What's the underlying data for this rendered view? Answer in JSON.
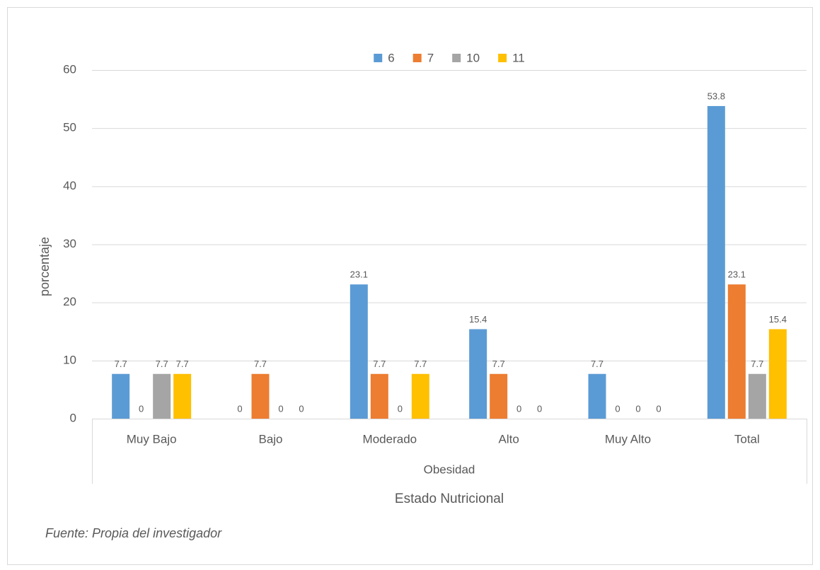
{
  "chart_data": {
    "type": "bar",
    "categories": [
      "Muy Bajo",
      "Bajo",
      "Moderado",
      "Alto",
      "Muy Alto",
      "Total"
    ],
    "category_group": "Obesidad",
    "x_label": "Estado Nutricional",
    "y_label": "porcentaje",
    "source": "Fuente: Propia del investigador",
    "series": [
      {
        "name": "6",
        "color": "#5b9bd5",
        "values": [
          7.7,
          0,
          23.1,
          15.4,
          7.7,
          53.8
        ]
      },
      {
        "name": "7",
        "color": "#ed7d31",
        "values": [
          0,
          7.7,
          7.7,
          7.7,
          0,
          23.1
        ]
      },
      {
        "name": "10",
        "color": "#a5a5a5",
        "values": [
          7.7,
          0,
          0,
          0,
          0,
          7.7
        ]
      },
      {
        "name": "11",
        "color": "#ffc000",
        "values": [
          7.7,
          0,
          7.7,
          0,
          0,
          15.4
        ]
      }
    ],
    "ylim": [
      0,
      60
    ],
    "yticks": [
      0,
      10,
      20,
      30,
      40,
      50,
      60
    ],
    "grid": true,
    "legend": "top"
  }
}
